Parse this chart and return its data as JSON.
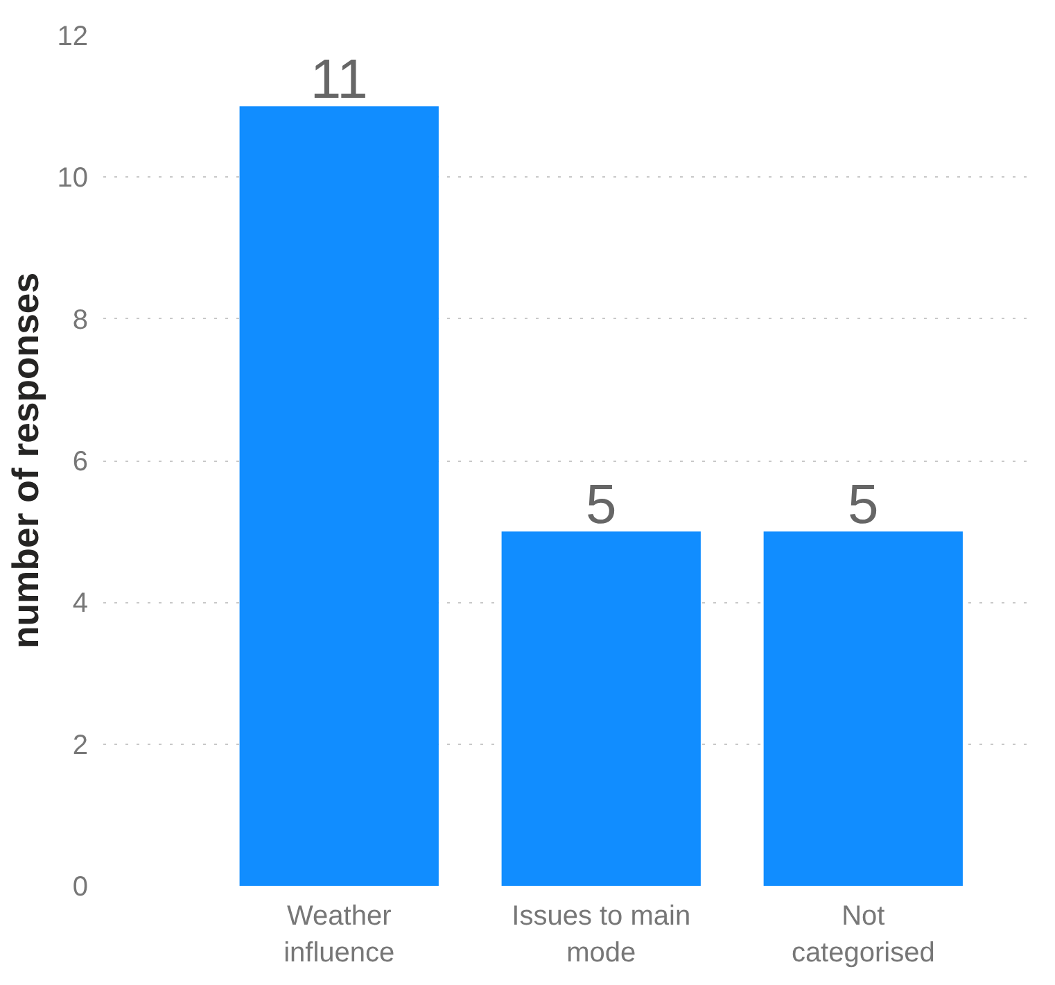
{
  "chart_data": {
    "type": "bar",
    "ylabel": "number of responses",
    "categories": [
      "Weather influence",
      "Issues to main mode",
      "Not categorised"
    ],
    "values": [
      11,
      5,
      5
    ],
    "color": "#118dff",
    "ylim": [
      0,
      12
    ],
    "yticks": [
      0,
      2,
      4,
      6,
      8,
      10,
      12
    ],
    "grid": "y",
    "data_labels": true
  }
}
